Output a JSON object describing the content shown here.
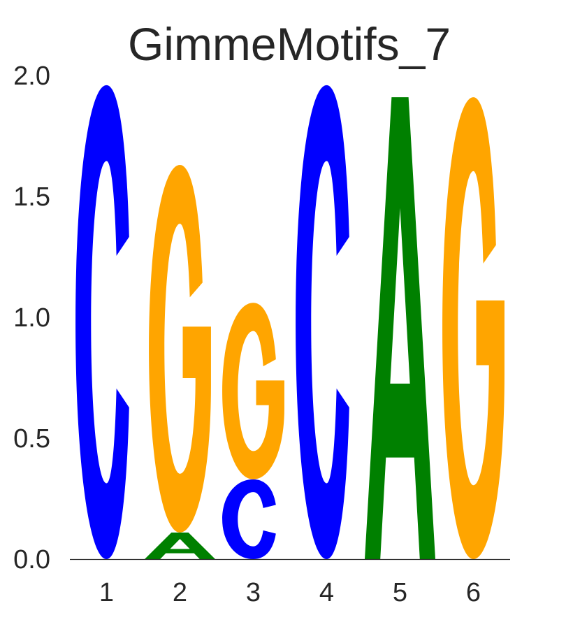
{
  "chart_data": {
    "type": "sequence-logo",
    "title": "GimmeMotifs_7",
    "xlabel": "",
    "ylabel": "",
    "ylim": [
      0,
      2.0
    ],
    "y_ticks": [
      "0.0",
      "0.5",
      "1.0",
      "1.5",
      "2.0"
    ],
    "x_ticks": [
      "1",
      "2",
      "3",
      "4",
      "5",
      "6"
    ],
    "grid": false,
    "colors": {
      "A": "#008000",
      "C": "#0000ff",
      "G": "#ffa500",
      "T": "#ff0000"
    },
    "positions": [
      {
        "position": "1",
        "letters": [
          {
            "base": "C",
            "height": 1.96
          }
        ]
      },
      {
        "position": "2",
        "letters": [
          {
            "base": "A",
            "height": 0.11
          },
          {
            "base": "G",
            "height": 1.52
          }
        ]
      },
      {
        "position": "3",
        "letters": [
          {
            "base": "C",
            "height": 0.33
          },
          {
            "base": "G",
            "height": 0.73
          }
        ]
      },
      {
        "position": "4",
        "letters": [
          {
            "base": "C",
            "height": 1.96
          }
        ]
      },
      {
        "position": "5",
        "letters": [
          {
            "base": "A",
            "height": 1.91
          }
        ]
      },
      {
        "position": "6",
        "letters": [
          {
            "base": "G",
            "height": 1.91
          }
        ]
      }
    ]
  }
}
